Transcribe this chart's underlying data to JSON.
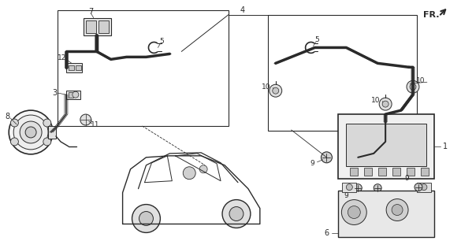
{
  "bg_color": "#ffffff",
  "line_color": "#2a2a2a",
  "fr_label": "FR.",
  "figsize": [
    5.85,
    3.2
  ],
  "dpi": 100
}
